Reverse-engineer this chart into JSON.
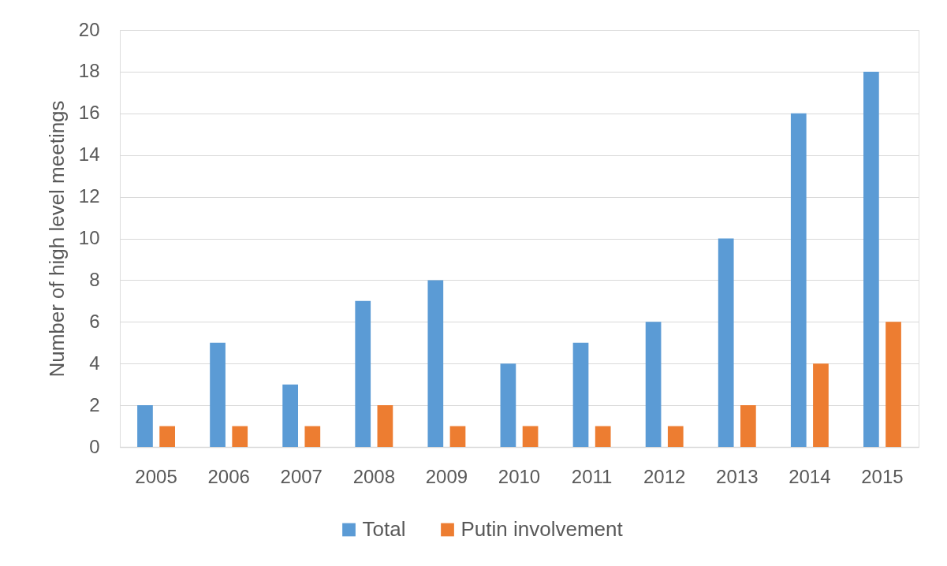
{
  "chart_data": {
    "type": "bar",
    "ylabel": "Number of high level meetings",
    "categories": [
      "2005",
      "2006",
      "2007",
      "2008",
      "2009",
      "2010",
      "2011",
      "2012",
      "2013",
      "2014",
      "2015"
    ],
    "series": [
      {
        "name": "Total",
        "color": "#5b9bd5",
        "values": [
          2,
          5,
          3,
          7,
          8,
          4,
          5,
          6,
          10,
          16,
          18
        ]
      },
      {
        "name": "Putin involvement",
        "color": "#ed7d31",
        "values": [
          1,
          1,
          1,
          2,
          1,
          1,
          1,
          1,
          2,
          4,
          6
        ]
      }
    ],
    "ylim": [
      0,
      20
    ],
    "yticks": [
      0,
      2,
      4,
      6,
      8,
      10,
      12,
      14,
      16,
      18,
      20
    ],
    "grid": "y",
    "legend": "bottom"
  }
}
